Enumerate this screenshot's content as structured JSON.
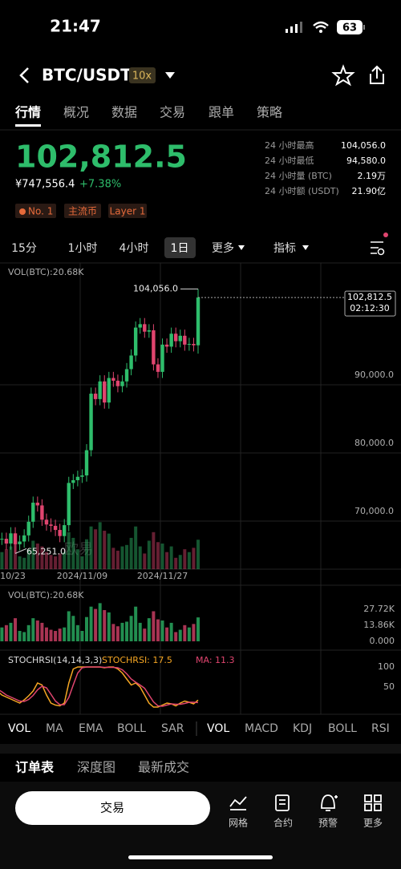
{
  "status": {
    "time": "21:47",
    "battery": "63"
  },
  "header": {
    "pair": "BTC/USDT",
    "leverage": "10x"
  },
  "tabs": [
    "行情",
    "概况",
    "数据",
    "交易",
    "跟单",
    "策略"
  ],
  "price": {
    "last": "102,812.5",
    "cny": "¥747,556.4",
    "change": "+7.38%"
  },
  "stats": [
    {
      "label": "24 小时最高",
      "value": "104,056.0"
    },
    {
      "label": "24 小时最低",
      "value": "94,580.0"
    },
    {
      "label": "24 小时量 (BTC)",
      "value": "2.19万"
    },
    {
      "label": "24 小时额 (USDT)",
      "value": "21.90亿"
    }
  ],
  "tags": [
    "No. 1",
    "主流币",
    "Layer 1"
  ],
  "timeframes": [
    "15分",
    "1小时",
    "4小时",
    "1日",
    "更多",
    "指标"
  ],
  "chart_data": {
    "type": "candlestick",
    "label": "VOL(BTC):20.68K",
    "watermark": "欧易",
    "categories": [
      null,
      null,
      null,
      "10/23",
      null,
      null,
      null,
      null,
      null,
      null,
      null,
      null,
      null,
      null,
      null,
      null,
      null,
      null,
      null,
      null,
      "2024/11/09",
      null,
      null,
      null,
      null,
      null,
      null,
      null,
      null,
      null,
      null,
      null,
      null,
      null,
      null,
      null,
      null,
      null,
      "2024/11/27",
      null,
      null,
      null,
      null,
      null,
      null,
      null,
      null
    ],
    "open": [
      68400,
      69000,
      67400,
      67400,
      66700,
      68200,
      66600,
      67000,
      67900,
      69900,
      72700,
      72300,
      70200,
      69500,
      69300,
      68700,
      67800,
      69400,
      75600,
      76000,
      76500,
      76700,
      80400,
      88700,
      87900,
      90500,
      87400,
      91000,
      90600,
      89800,
      90500,
      92300,
      94300,
      98400,
      98900,
      97800,
      98000,
      93000,
      91900,
      95900,
      95600,
      97500,
      96400,
      97200,
      95900,
      96000,
      95800
    ],
    "high": [
      69900,
      69900,
      68300,
      68300,
      69100,
      69100,
      67900,
      68800,
      70800,
      73600,
      73600,
      73200,
      71100,
      70400,
      70200,
      69600,
      70300,
      76500,
      76900,
      77400,
      77600,
      81300,
      89600,
      89600,
      91400,
      91400,
      91900,
      91900,
      91500,
      91400,
      93200,
      95200,
      99300,
      99800,
      99800,
      98900,
      98900,
      93900,
      96800,
      96800,
      98400,
      98400,
      98100,
      98100,
      96900,
      96900,
      104056
    ],
    "low": [
      67500,
      66500,
      66500,
      65800,
      65800,
      65251,
      65700,
      66100,
      67000,
      69000,
      71400,
      69300,
      68600,
      68400,
      67800,
      66900,
      66900,
      68500,
      74700,
      75100,
      75600,
      75800,
      79500,
      87000,
      87000,
      86500,
      86500,
      89700,
      88900,
      88900,
      89600,
      91400,
      93400,
      97500,
      96900,
      96900,
      92100,
      91000,
      91000,
      94700,
      94700,
      95500,
      95500,
      95000,
      95000,
      94900,
      94580
    ],
    "close": [
      69000,
      67400,
      67400,
      66700,
      68200,
      66600,
      67000,
      67900,
      69900,
      72700,
      72300,
      70200,
      69500,
      69300,
      68700,
      67800,
      69400,
      75600,
      76000,
      76500,
      76700,
      80400,
      88700,
      87900,
      90500,
      87400,
      91000,
      90600,
      89800,
      90500,
      92300,
      94300,
      98400,
      98900,
      97800,
      98000,
      93000,
      91900,
      95900,
      95600,
      97500,
      96400,
      97200,
      95900,
      96000,
      95800,
      102812.5
    ],
    "up_color": "#2ebd6b",
    "down_color": "#e0456f",
    "ylim": [
      62940,
      107650
    ],
    "yticks": [
      {
        "value": 70000,
        "label": "70,000.0"
      },
      {
        "value": 80000,
        "label": "80,000.0"
      },
      {
        "value": 90000,
        "label": "90,000.0"
      }
    ],
    "high_label": "104,056.0",
    "low_label": "65,251.0",
    "last_label": "102,812.5",
    "countdown": "02:12:30",
    "volume": {
      "label": "VOL(BTC):20.68K",
      "values": [
        15000,
        17000,
        12000,
        14000,
        16000,
        20000,
        9000,
        8000,
        14000,
        20000,
        18000,
        16000,
        12000,
        10000,
        9000,
        11000,
        12000,
        26000,
        22000,
        14000,
        9000,
        21000,
        30000,
        28000,
        33000,
        27000,
        25000,
        15000,
        13000,
        16000,
        17000,
        22000,
        30000,
        16000,
        11000,
        20000,
        26000,
        19000,
        18000,
        12000,
        16000,
        8000,
        10000,
        14000,
        12000,
        15000,
        20680
      ],
      "ylim": [
        0,
        45045
      ],
      "yticks": [
        {
          "value": 0,
          "label": "0.000"
        },
        {
          "value": 13860,
          "label": "13.86K"
        },
        {
          "value": 27720,
          "label": "27.72K"
        }
      ]
    },
    "stochrsi": {
      "label": "STOCHRSI(14,14,3,3)",
      "ylim": [
        -16,
        134
      ],
      "yticks": [
        50,
        100
      ],
      "series": [
        {
          "name": "STOCHRSI",
          "label": "STOCHRSI: 17.5",
          "color": "#f5a623",
          "values": [
            45,
            40,
            30,
            25,
            20,
            15,
            10,
            18,
            28,
            40,
            60,
            55,
            30,
            10,
            5,
            3,
            10,
            60,
            95,
            100,
            100,
            100,
            100,
            100,
            100,
            98,
            100,
            100,
            95,
            85,
            70,
            55,
            60,
            50,
            30,
            10,
            0,
            0,
            5,
            10,
            8,
            3,
            10,
            15,
            12,
            8,
            17.5
          ]
        },
        {
          "name": "MA",
          "label": "MA: 11.3",
          "color": "#e0456f",
          "values": [
            50,
            45,
            38,
            30,
            25,
            20,
            15,
            14,
            19,
            29,
            43,
            52,
            48,
            32,
            15,
            6,
            6,
            24,
            55,
            85,
            98,
            100,
            100,
            100,
            100,
            99,
            99,
            99,
            98,
            93,
            83,
            70,
            62,
            55,
            47,
            30,
            13,
            3,
            2,
            5,
            8,
            7,
            7,
            9,
            12,
            12,
            11.3
          ]
        }
      ]
    }
  },
  "indicators_main": [
    "VOL",
    "MA",
    "EMA",
    "BOLL",
    "SAR"
  ],
  "indicators_sub": [
    "VOL",
    "MACD",
    "KDJ",
    "BOLL",
    "RSI"
  ],
  "order_tabs": [
    "订单表",
    "深度图",
    "最新成交"
  ],
  "bottom": {
    "trade": "交易",
    "nav": [
      "网格",
      "合约",
      "预警",
      "更多"
    ]
  }
}
